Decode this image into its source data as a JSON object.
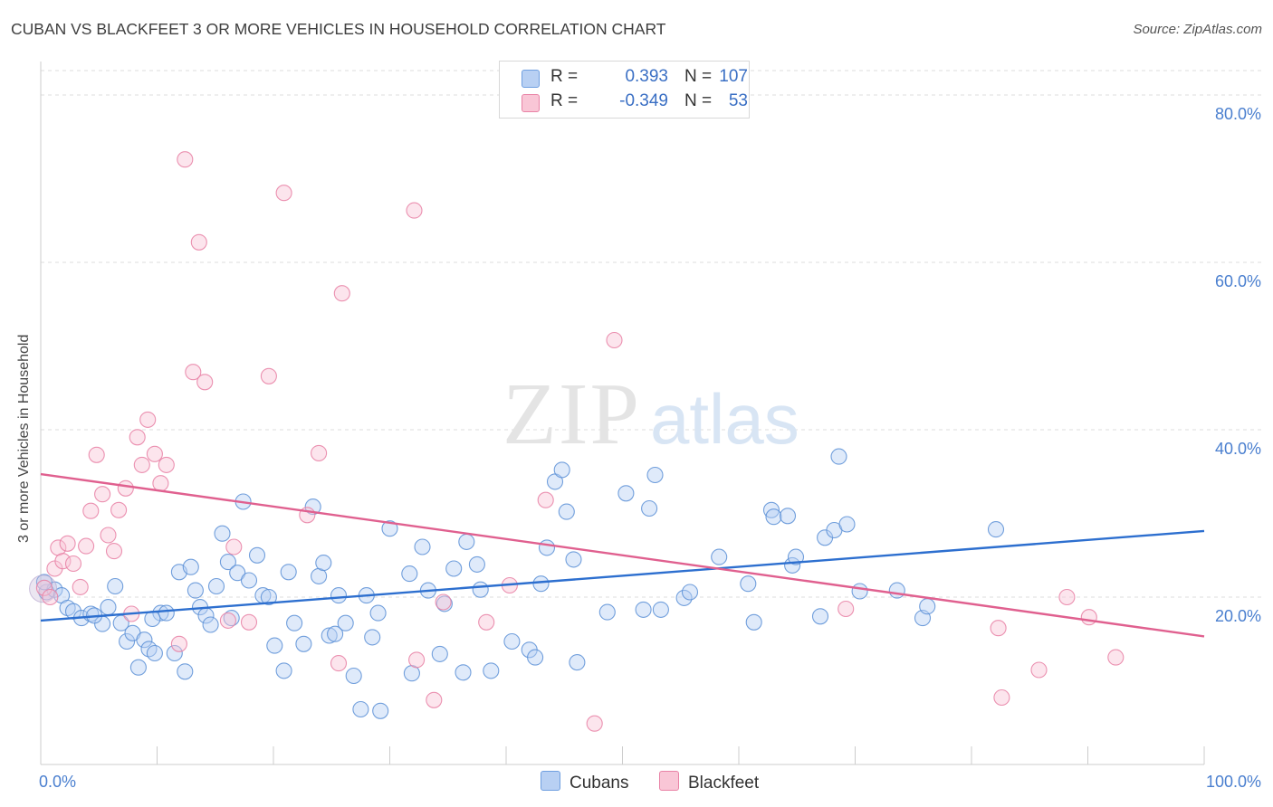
{
  "header": {
    "title": "CUBAN VS BLACKFEET 3 OR MORE VEHICLES IN HOUSEHOLD CORRELATION CHART",
    "source": "Source: ZipAtlas.com"
  },
  "watermark": {
    "zip": "ZIP",
    "atlas": "atlas"
  },
  "legend": {
    "rows": [
      {
        "r_label": "R =",
        "r_value": "0.393",
        "n_label": "N =",
        "n_value": "107",
        "color": "#b8d0f3",
        "border": "#6f9fe0"
      },
      {
        "r_label": "R =",
        "r_value": "-0.349",
        "n_label": "N =",
        "n_value": "53",
        "color": "#f9c6d6",
        "border": "#e983a6"
      }
    ]
  },
  "bottom_legend": {
    "cubans": "Cubans",
    "blackfeet": "Blackfeet"
  },
  "chart_data": {
    "type": "scatter",
    "title": "CUBAN VS BLACKFEET 3 OR MORE VEHICLES IN HOUSEHOLD CORRELATION CHART",
    "xlabel": "",
    "ylabel": "3 or more Vehicles in Household",
    "xlim": [
      0,
      100
    ],
    "ylim": [
      0,
      84
    ],
    "x_tick_labels": [
      "0.0%",
      "100.0%"
    ],
    "y_ticks": [
      20,
      40,
      60,
      80
    ],
    "y_tick_labels": [
      "20.0%",
      "40.0%",
      "60.0%",
      "80.0%"
    ],
    "grid": true,
    "legend_position": "top-center",
    "series": [
      {
        "name": "Cubans",
        "color": "#5b8fd6",
        "fill": "#b8d0f3",
        "trend": {
          "x": [
            0,
            100
          ],
          "y": [
            17.2,
            27.9
          ]
        },
        "points": [
          [
            0.5,
            20.6
          ],
          [
            1.2,
            20.9
          ],
          [
            1.8,
            20.2
          ],
          [
            2.3,
            18.7
          ],
          [
            2.8,
            18.3
          ],
          [
            3.5,
            17.5
          ],
          [
            4.3,
            18.0
          ],
          [
            5.3,
            16.8
          ],
          [
            5.8,
            18.8
          ],
          [
            6.4,
            21.3
          ],
          [
            6.9,
            16.9
          ],
          [
            7.4,
            14.7
          ],
          [
            7.9,
            15.7
          ],
          [
            8.4,
            11.6
          ],
          [
            8.9,
            14.9
          ],
          [
            9.3,
            13.8
          ],
          [
            9.8,
            13.3
          ],
          [
            10.3,
            18.1
          ],
          [
            10.8,
            18.1
          ],
          [
            11.5,
            13.3
          ],
          [
            11.9,
            23.0
          ],
          [
            12.4,
            11.1
          ],
          [
            12.9,
            23.6
          ],
          [
            13.3,
            20.8
          ],
          [
            13.7,
            18.8
          ],
          [
            14.2,
            17.8
          ],
          [
            14.6,
            16.7
          ],
          [
            15.1,
            21.3
          ],
          [
            15.6,
            27.6
          ],
          [
            16.1,
            24.2
          ],
          [
            16.4,
            17.5
          ],
          [
            16.9,
            22.9
          ],
          [
            17.4,
            31.4
          ],
          [
            17.9,
            22.0
          ],
          [
            18.6,
            25.0
          ],
          [
            19.1,
            20.2
          ],
          [
            19.6,
            20.0
          ],
          [
            20.1,
            14.2
          ],
          [
            20.9,
            11.2
          ],
          [
            21.3,
            23.0
          ],
          [
            21.8,
            16.9
          ],
          [
            22.6,
            14.4
          ],
          [
            23.4,
            30.8
          ],
          [
            23.9,
            22.5
          ],
          [
            24.3,
            24.1
          ],
          [
            24.8,
            15.4
          ],
          [
            25.3,
            15.6
          ],
          [
            25.6,
            20.2
          ],
          [
            26.2,
            16.9
          ],
          [
            26.9,
            10.6
          ],
          [
            27.5,
            6.6
          ],
          [
            28.0,
            20.2
          ],
          [
            28.5,
            15.2
          ],
          [
            29.0,
            18.1
          ],
          [
            29.2,
            6.4
          ],
          [
            30.0,
            28.2
          ],
          [
            31.7,
            22.8
          ],
          [
            31.9,
            10.9
          ],
          [
            32.8,
            26.0
          ],
          [
            33.3,
            20.8
          ],
          [
            34.3,
            13.2
          ],
          [
            34.7,
            19.2
          ],
          [
            35.5,
            23.4
          ],
          [
            36.3,
            11.0
          ],
          [
            36.6,
            26.6
          ],
          [
            37.5,
            23.9
          ],
          [
            37.8,
            20.9
          ],
          [
            40.5,
            14.7
          ],
          [
            42.0,
            13.7
          ],
          [
            42.5,
            12.8
          ],
          [
            43.0,
            21.6
          ],
          [
            43.5,
            25.9
          ],
          [
            44.2,
            33.8
          ],
          [
            44.8,
            35.2
          ],
          [
            45.2,
            30.2
          ],
          [
            45.8,
            24.5
          ],
          [
            46.1,
            12.2
          ],
          [
            48.7,
            18.2
          ],
          [
            50.3,
            32.4
          ],
          [
            51.8,
            18.5
          ],
          [
            52.3,
            30.6
          ],
          [
            52.8,
            34.6
          ],
          [
            53.3,
            18.5
          ],
          [
            55.3,
            19.9
          ],
          [
            55.8,
            20.6
          ],
          [
            58.3,
            24.8
          ],
          [
            60.8,
            21.6
          ],
          [
            61.3,
            17.0
          ],
          [
            62.8,
            30.4
          ],
          [
            63.0,
            29.6
          ],
          [
            64.2,
            29.7
          ],
          [
            64.6,
            23.8
          ],
          [
            64.9,
            24.8
          ],
          [
            67.0,
            17.7
          ],
          [
            67.4,
            27.1
          ],
          [
            68.2,
            28.0
          ],
          [
            68.6,
            36.8
          ],
          [
            69.3,
            28.7
          ],
          [
            70.4,
            20.7
          ],
          [
            73.6,
            20.8
          ],
          [
            75.8,
            17.5
          ],
          [
            76.2,
            18.9
          ],
          [
            82.1,
            28.1
          ],
          [
            0.3,
            21.8
          ],
          [
            4.6,
            17.8
          ],
          [
            9.6,
            17.4
          ],
          [
            38.7,
            11.2
          ]
        ]
      },
      {
        "name": "Blackfeet",
        "color": "#e87fa3",
        "fill": "#f9c6d6",
        "trend": {
          "x": [
            0,
            100
          ],
          "y": [
            34.7,
            15.3
          ]
        },
        "points": [
          [
            0.3,
            21.1
          ],
          [
            0.8,
            20.0
          ],
          [
            1.2,
            23.4
          ],
          [
            1.5,
            25.9
          ],
          [
            1.9,
            24.3
          ],
          [
            2.3,
            26.4
          ],
          [
            2.8,
            24.0
          ],
          [
            3.4,
            21.2
          ],
          [
            3.9,
            26.1
          ],
          [
            4.3,
            30.3
          ],
          [
            4.8,
            37.0
          ],
          [
            5.3,
            32.3
          ],
          [
            5.8,
            27.4
          ],
          [
            6.3,
            25.5
          ],
          [
            6.7,
            30.4
          ],
          [
            7.3,
            33.0
          ],
          [
            7.8,
            18.0
          ],
          [
            8.3,
            39.1
          ],
          [
            8.7,
            35.8
          ],
          [
            9.2,
            41.2
          ],
          [
            9.8,
            37.1
          ],
          [
            10.3,
            33.6
          ],
          [
            10.8,
            35.8
          ],
          [
            11.9,
            14.4
          ],
          [
            12.4,
            72.3
          ],
          [
            13.1,
            46.9
          ],
          [
            13.6,
            62.4
          ],
          [
            14.1,
            45.7
          ],
          [
            16.1,
            17.2
          ],
          [
            16.6,
            26.0
          ],
          [
            17.9,
            17.0
          ],
          [
            19.6,
            46.4
          ],
          [
            20.9,
            68.3
          ],
          [
            22.9,
            29.8
          ],
          [
            23.9,
            37.2
          ],
          [
            25.6,
            12.1
          ],
          [
            25.9,
            56.3
          ],
          [
            32.1,
            66.2
          ],
          [
            32.3,
            12.5
          ],
          [
            33.8,
            7.7
          ],
          [
            34.6,
            19.4
          ],
          [
            38.3,
            17.0
          ],
          [
            40.3,
            21.4
          ],
          [
            43.4,
            31.6
          ],
          [
            47.6,
            4.9
          ],
          [
            49.3,
            50.7
          ],
          [
            69.2,
            18.6
          ],
          [
            82.3,
            16.3
          ],
          [
            82.6,
            8.0
          ],
          [
            85.8,
            11.3
          ],
          [
            88.2,
            20.0
          ],
          [
            90.1,
            17.6
          ],
          [
            92.4,
            12.8
          ]
        ]
      }
    ]
  }
}
